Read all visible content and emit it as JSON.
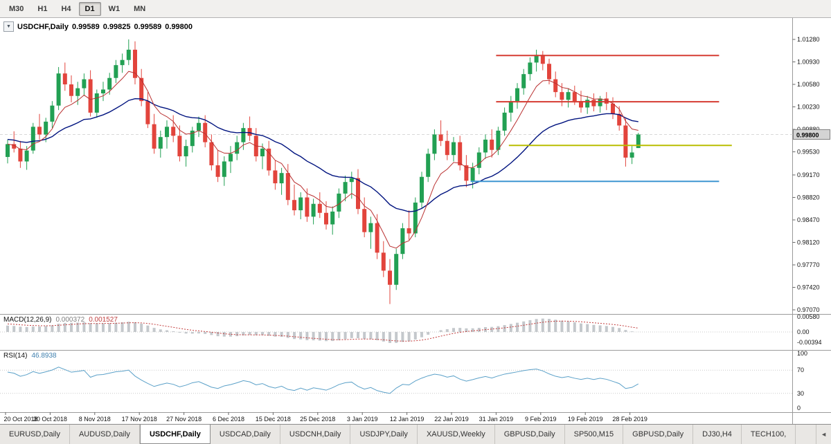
{
  "toolbar": {
    "timeframes": [
      "M30",
      "H1",
      "H4",
      "D1",
      "W1",
      "MN"
    ],
    "active_timeframe": "D1"
  },
  "chart_header": {
    "collapse_icon": "▼",
    "symbol": "USDCHF,Daily",
    "open": "0.99589",
    "high": "0.99825",
    "low": "0.99589",
    "close": "0.99800"
  },
  "price_axis": {
    "labels": [
      "1.01280",
      "1.00930",
      "1.00580",
      "1.00230",
      "0.99880",
      "0.99530",
      "0.99170",
      "0.98820",
      "0.98470",
      "0.98120",
      "0.97770",
      "0.97420",
      "0.97070"
    ],
    "current_price": "0.99800"
  },
  "time_axis": {
    "labels": [
      "20 Oct 2018",
      "30 Oct 2018",
      "8 Nov 2018",
      "17 Nov 2018",
      "27 Nov 2018",
      "6 Dec 2018",
      "15 Dec 2018",
      "25 Dec 2018",
      "3 Jan 2019",
      "12 Jan 2019",
      "22 Jan 2019",
      "31 Jan 2019",
      "9 Feb 2019",
      "19 Feb 2019",
      "28 Feb 2019"
    ]
  },
  "indicators": {
    "macd": {
      "label": "MACD(12,26,9)",
      "value_main": "0.000372",
      "value_signal": "0.001527",
      "axis_labels": [
        "0.00580",
        "0.00",
        "-0.00394"
      ]
    },
    "rsi": {
      "label": "RSI(14)",
      "value": "46.8938",
      "axis_labels": [
        "100",
        "70",
        "30",
        "0"
      ]
    }
  },
  "tabs": {
    "items": [
      "EURUSD,Daily",
      "AUDUSD,Daily",
      "USDCHF,Daily",
      "USDCAD,Daily",
      "USDCNH,Daily",
      "USDJPY,Daily",
      "XAUUSD,Weekly",
      "GBPUSD,Daily",
      "SP500,M15",
      "GBPUSD,Daily",
      "DJ30,H4",
      "TECH100,"
    ],
    "active_index": 2,
    "active": "USDCHF,Daily",
    "scroll_icon": "◄"
  },
  "chart_data": {
    "type": "candlestick",
    "title": "USDCHF,Daily",
    "y_range": [
      0.9707,
      1.0128
    ],
    "x_label_indices": [
      0,
      7,
      14,
      21,
      28,
      35,
      42,
      49,
      56,
      63,
      70,
      77,
      84,
      91,
      98
    ],
    "colors": {
      "bull": "#22a053",
      "bear": "#e2443c",
      "ma_fast": "#b93030",
      "ma_slow": "#00137f",
      "red": "#d53b32",
      "yellow": "#b9bd00",
      "blue": "#3e95d1",
      "macd_signal": "#c23b3b",
      "macd_hist": "#c4c8cc",
      "rsi": "#5aa0c8"
    },
    "hlines": [
      {
        "price": 1.0103,
        "color": "red",
        "from": 77,
        "to": 112
      },
      {
        "price": 1.0031,
        "color": "red",
        "from": 77,
        "to": 112
      },
      {
        "price": 0.9963,
        "color": "yellow",
        "from": 79,
        "to": 114
      },
      {
        "price": 0.9907,
        "color": "blue",
        "from": 73,
        "to": 112
      }
    ],
    "candles": [
      [
        0.9945,
        0.9972,
        0.9935,
        0.9965
      ],
      [
        0.9965,
        0.9985,
        0.9952,
        0.9958
      ],
      [
        0.9958,
        0.997,
        0.9928,
        0.9938
      ],
      [
        0.9938,
        0.9962,
        0.9925,
        0.9955
      ],
      [
        0.9955,
        0.9998,
        0.995,
        0.9992
      ],
      [
        0.9992,
        1.0012,
        0.9972,
        0.998
      ],
      [
        0.998,
        1.0006,
        0.9968,
        1.0
      ],
      [
        1.0,
        1.0032,
        0.999,
        1.0025
      ],
      [
        1.0025,
        1.0085,
        1.0018,
        1.0075
      ],
      [
        1.0075,
        1.0092,
        1.0048,
        1.0058
      ],
      [
        1.0058,
        1.0072,
        1.003,
        1.004
      ],
      [
        1.004,
        1.0062,
        1.0026,
        1.0052
      ],
      [
        1.0052,
        1.0075,
        1.004,
        1.0066
      ],
      [
        1.0066,
        1.008,
        1.0008,
        1.0014
      ],
      [
        1.0014,
        1.005,
        1.0006,
        1.0044
      ],
      [
        1.0044,
        1.0062,
        1.0032,
        1.005
      ],
      [
        1.005,
        1.0076,
        1.0042,
        1.0068
      ],
      [
        1.0068,
        1.0096,
        1.006,
        1.0088
      ],
      [
        1.0088,
        1.0106,
        1.0076,
        1.0096
      ],
      [
        1.0096,
        1.0128,
        1.0088,
        1.0112
      ],
      [
        1.0112,
        1.0125,
        1.0058,
        1.0068
      ],
      [
        1.0068,
        1.0082,
        1.0024,
        1.0032
      ],
      [
        1.0032,
        1.0046,
        0.999,
        0.9996
      ],
      [
        0.9996,
        1.0012,
        0.995,
        0.9958
      ],
      [
        0.9958,
        0.9986,
        0.9944,
        0.9976
      ],
      [
        0.9976,
        1.0002,
        0.9958,
        0.9992
      ],
      [
        0.9992,
        1.001,
        0.9968,
        0.9978
      ],
      [
        0.9978,
        0.9994,
        0.9938,
        0.9946
      ],
      [
        0.9946,
        0.9972,
        0.993,
        0.9962
      ],
      [
        0.9962,
        0.9992,
        0.9952,
        0.9986
      ],
      [
        0.9986,
        1.0008,
        0.9976,
        0.9998
      ],
      [
        0.9998,
        1.001,
        0.996,
        0.9968
      ],
      [
        0.9968,
        0.998,
        0.9924,
        0.9932
      ],
      [
        0.9932,
        0.9956,
        0.9906,
        0.9914
      ],
      [
        0.9914,
        0.9946,
        0.99,
        0.9938
      ],
      [
        0.9938,
        0.9962,
        0.992,
        0.995
      ],
      [
        0.995,
        0.9978,
        0.994,
        0.9968
      ],
      [
        0.9968,
        0.9998,
        0.9956,
        0.999
      ],
      [
        0.999,
        1.0008,
        0.997,
        0.9978
      ],
      [
        0.9978,
        0.999,
        0.9938,
        0.9946
      ],
      [
        0.9946,
        0.9966,
        0.9926,
        0.9958
      ],
      [
        0.9958,
        0.997,
        0.9916,
        0.9924
      ],
      [
        0.9924,
        0.994,
        0.9894,
        0.9904
      ],
      [
        0.9904,
        0.9928,
        0.9886,
        0.992
      ],
      [
        0.992,
        0.9934,
        0.987,
        0.9878
      ],
      [
        0.9878,
        0.9902,
        0.9854,
        0.9862
      ],
      [
        0.9862,
        0.989,
        0.9848,
        0.9882
      ],
      [
        0.9882,
        0.9896,
        0.9844,
        0.9852
      ],
      [
        0.9852,
        0.988,
        0.984,
        0.9872
      ],
      [
        0.9872,
        0.989,
        0.985,
        0.9858
      ],
      [
        0.9858,
        0.9876,
        0.9832,
        0.984
      ],
      [
        0.984,
        0.9868,
        0.9824,
        0.986
      ],
      [
        0.986,
        0.9896,
        0.985,
        0.9888
      ],
      [
        0.9888,
        0.9916,
        0.9876,
        0.9906
      ],
      [
        0.9906,
        0.9922,
        0.988,
        0.9912
      ],
      [
        0.9912,
        0.9926,
        0.9856,
        0.9864
      ],
      [
        0.9864,
        0.9882,
        0.982,
        0.9828
      ],
      [
        0.9828,
        0.9852,
        0.9802,
        0.9842
      ],
      [
        0.9842,
        0.9856,
        0.9786,
        0.9796
      ],
      [
        0.9796,
        0.9814,
        0.9758,
        0.9768
      ],
      [
        0.9768,
        0.9786,
        0.9716,
        0.9746
      ],
      [
        0.9746,
        0.9802,
        0.9738,
        0.9794
      ],
      [
        0.9794,
        0.9842,
        0.9786,
        0.9834
      ],
      [
        0.9834,
        0.9862,
        0.9816,
        0.9826
      ],
      [
        0.9826,
        0.9882,
        0.982,
        0.9874
      ],
      [
        0.9874,
        0.9922,
        0.9866,
        0.9914
      ],
      [
        0.9914,
        0.9958,
        0.9906,
        0.995
      ],
      [
        0.995,
        0.9988,
        0.994,
        0.998
      ],
      [
        0.998,
        1.0002,
        0.9962,
        0.997
      ],
      [
        0.997,
        0.9986,
        0.994,
        0.9948
      ],
      [
        0.9948,
        0.9976,
        0.9938,
        0.9968
      ],
      [
        0.9968,
        0.9978,
        0.9924,
        0.9932
      ],
      [
        0.9932,
        0.9948,
        0.9898,
        0.9908
      ],
      [
        0.9908,
        0.9936,
        0.9896,
        0.9928
      ],
      [
        0.9928,
        0.996,
        0.9918,
        0.9952
      ],
      [
        0.9952,
        0.998,
        0.9942,
        0.9972
      ],
      [
        0.9972,
        0.9988,
        0.9944,
        0.9956
      ],
      [
        0.9956,
        0.9992,
        0.9948,
        0.9986
      ],
      [
        0.9986,
        1.0022,
        0.9978,
        1.0014
      ],
      [
        1.0014,
        1.004,
        1.0,
        1.0032
      ],
      [
        1.0032,
        1.006,
        1.002,
        1.0052
      ],
      [
        1.0052,
        1.0082,
        1.0042,
        1.0074
      ],
      [
        1.0074,
        1.01,
        1.0064,
        1.0092
      ],
      [
        1.0092,
        1.0112,
        1.0078,
        1.0104
      ],
      [
        1.0104,
        1.011,
        1.008,
        1.009
      ],
      [
        1.009,
        1.0098,
        1.0058,
        1.0066
      ],
      [
        1.0066,
        1.0078,
        1.0038,
        1.0046
      ],
      [
        1.0046,
        1.006,
        1.0024,
        1.0034
      ],
      [
        1.0034,
        1.0052,
        1.0022,
        1.0046
      ],
      [
        1.0046,
        1.0056,
        1.0026,
        1.0032
      ],
      [
        1.0032,
        1.0048,
        1.0014,
        1.0022
      ],
      [
        1.0022,
        1.004,
        1.0012,
        1.0034
      ],
      [
        1.0034,
        1.0044,
        1.0016,
        1.0024
      ],
      [
        1.0024,
        1.004,
        1.0014,
        1.0036
      ],
      [
        1.0036,
        1.0046,
        1.0018,
        1.0028
      ],
      [
        1.0028,
        1.0038,
        1.0004,
        1.0012
      ],
      [
        1.0012,
        1.0024,
        0.9986,
        0.9994
      ],
      [
        0.9994,
        1.0006,
        0.993,
        0.9944
      ],
      [
        0.9944,
        0.9962,
        0.9934,
        0.9952
      ],
      [
        0.99589,
        0.99825,
        0.99589,
        0.998
      ]
    ]
  }
}
